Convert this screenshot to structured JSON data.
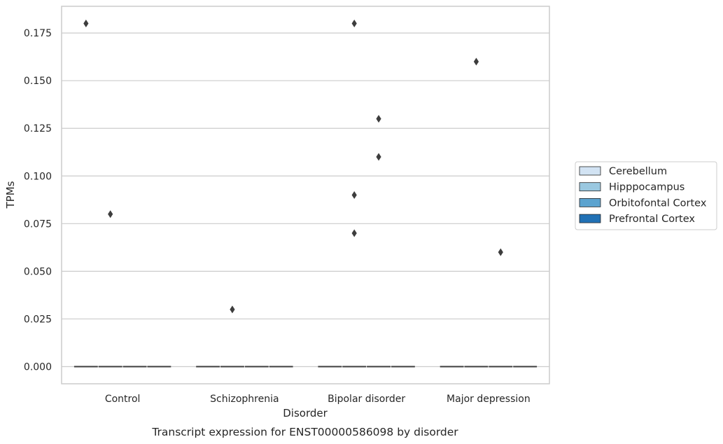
{
  "chart_data": {
    "type": "box",
    "title": "",
    "caption": "Transcript expression for ENST00000586098 by disorder",
    "xlabel": "Disorder",
    "ylabel": "TPMs",
    "categories": [
      "Control",
      "Schizophrenia",
      "Bipolar disorder",
      "Major depression"
    ],
    "ylim": [
      -0.009,
      0.189
    ],
    "yticks": [
      "0.000",
      "0.025",
      "0.050",
      "0.075",
      "0.100",
      "0.125",
      "0.150",
      "0.175"
    ],
    "ytick_values": [
      0,
      0.025,
      0.05,
      0.075,
      0.1,
      0.125,
      0.15,
      0.175
    ],
    "grid": true,
    "legend_position": "right",
    "series": [
      {
        "name": "Cerebellum",
        "color": "#d2e3f3",
        "median": [
          0,
          0,
          0,
          0
        ],
        "outliers": [
          [
            0.18
          ],
          [],
          [],
          []
        ]
      },
      {
        "name": "Hipppocampus",
        "color": "#9ac8e0",
        "median": [
          0,
          0,
          0,
          0
        ],
        "outliers": [
          [
            0.08
          ],
          [
            0.03
          ],
          [
            0.07,
            0.09,
            0.18
          ],
          [
            0.16
          ]
        ]
      },
      {
        "name": "Orbitofontal Cortex",
        "color": "#5ba3cf",
        "median": [
          0,
          0,
          0,
          0
        ],
        "outliers": [
          [],
          [],
          [
            0.13,
            0.11
          ],
          [
            0.06
          ]
        ]
      },
      {
        "name": "Prefrontal Cortex",
        "color": "#2171b5",
        "median": [
          0,
          0,
          0,
          0
        ],
        "outliers": [
          [],
          [],
          [],
          []
        ]
      }
    ]
  }
}
